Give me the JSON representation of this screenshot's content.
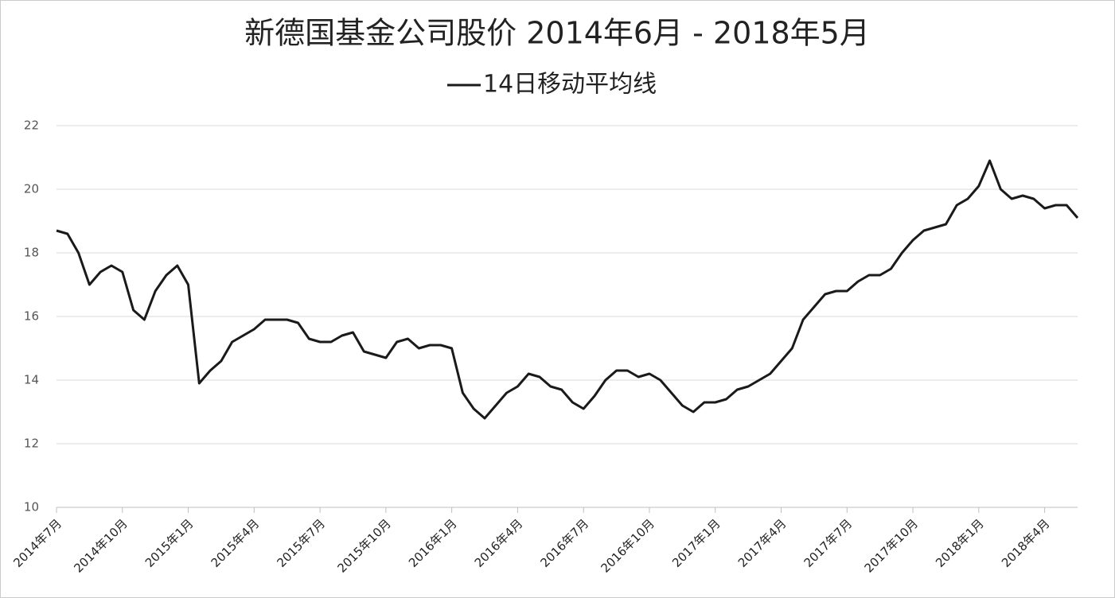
{
  "chart_data": {
    "type": "line",
    "title": "新德国基金公司股价 2014年6月 - 2018年5月",
    "categories": [
      "2014年7月",
      null,
      null,
      null,
      null,
      null,
      "2014年10月",
      null,
      null,
      null,
      null,
      null,
      "2015年1月",
      null,
      null,
      null,
      null,
      null,
      "2015年4月",
      null,
      null,
      null,
      null,
      null,
      "2015年7月",
      null,
      null,
      null,
      null,
      null,
      "2015年10月",
      null,
      null,
      null,
      null,
      null,
      "2016年1月",
      null,
      null,
      null,
      null,
      null,
      "2016年4月",
      null,
      null,
      null,
      null,
      null,
      "2016年7月",
      null,
      null,
      null,
      null,
      null,
      "2016年10月",
      null,
      null,
      null,
      null,
      null,
      "2017年1月",
      null,
      null,
      null,
      null,
      null,
      "2017年4月",
      null,
      null,
      null,
      null,
      null,
      "2017年7月",
      null,
      null,
      null,
      null,
      null,
      "2017年10月",
      null,
      null,
      null,
      null,
      null,
      "2018年1月",
      null,
      null,
      null,
      null,
      null,
      "2018年4月",
      null,
      null,
      null
    ],
    "series": [
      {
        "name": "14日移动平均线",
        "color": "#1a1a1a",
        "values": [
          18.7,
          18.6,
          18.0,
          17.0,
          17.4,
          17.6,
          17.4,
          16.2,
          15.9,
          16.8,
          17.3,
          17.6,
          17.0,
          13.9,
          14.3,
          14.6,
          15.2,
          15.4,
          15.6,
          15.9,
          15.9,
          15.9,
          15.8,
          15.3,
          15.2,
          15.2,
          15.4,
          15.5,
          14.9,
          14.8,
          14.7,
          15.2,
          15.3,
          15.0,
          15.1,
          15.1,
          15.0,
          13.6,
          13.1,
          12.8,
          13.2,
          13.6,
          13.8,
          14.2,
          14.1,
          13.8,
          13.7,
          13.3,
          13.1,
          13.5,
          14.0,
          14.3,
          14.3,
          14.1,
          14.2,
          14.0,
          13.6,
          13.2,
          13.0,
          13.3,
          13.3,
          13.4,
          13.7,
          13.8,
          14.0,
          14.2,
          14.6,
          15.0,
          15.9,
          16.3,
          16.7,
          16.8,
          16.8,
          17.1,
          17.3,
          17.3,
          17.5,
          18.0,
          18.4,
          18.7,
          18.8,
          18.9,
          19.5,
          19.7,
          20.1,
          20.9,
          20.0,
          19.7,
          19.8,
          19.7,
          19.4,
          19.5,
          19.5,
          19.1
        ]
      }
    ],
    "ylim": [
      10,
      22
    ],
    "yticks": [
      10,
      12,
      14,
      16,
      18,
      20,
      22
    ],
    "grid": true
  }
}
